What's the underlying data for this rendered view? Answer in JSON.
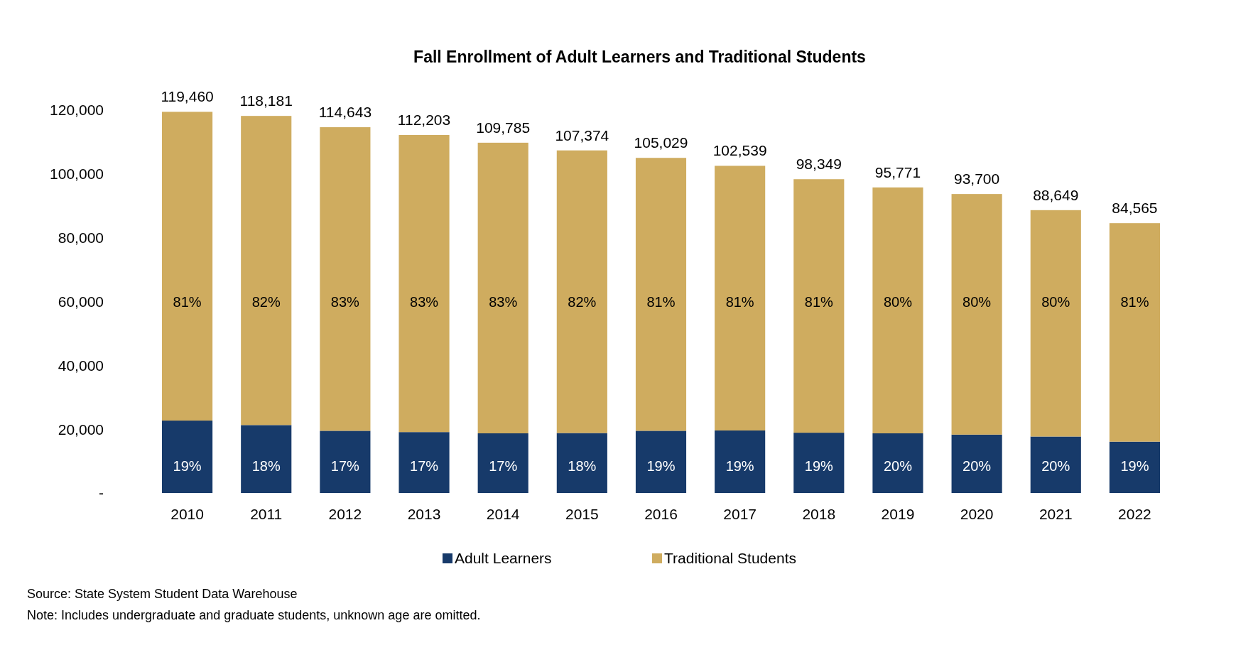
{
  "chart_data": {
    "type": "bar",
    "stacked": true,
    "title": "Fall Enrollment of Adult Learners and Traditional Students",
    "categories": [
      "2010",
      "2011",
      "2012",
      "2013",
      "2014",
      "2015",
      "2016",
      "2017",
      "2018",
      "2019",
      "2020",
      "2021",
      "2022"
    ],
    "series": [
      {
        "name": "Adult Learners",
        "color": "#173a6a",
        "values": [
          22700,
          21300,
          19500,
          19100,
          18700,
          18800,
          19500,
          19600,
          18900,
          18700,
          18300,
          17700,
          16100
        ]
      },
      {
        "name": "Traditional Students",
        "color": "#cfac5f",
        "values": [
          96760,
          96881,
          95143,
          93103,
          91085,
          88574,
          85529,
          82939,
          79449,
          77071,
          75400,
          70949,
          68465
        ]
      }
    ],
    "totals": [
      "119,460",
      "118,181",
      "114,643",
      "112,203",
      "109,785",
      "107,374",
      "105,029",
      "102,539",
      "98,349",
      "95,771",
      "93,700",
      "88,649",
      "84,565"
    ],
    "ylim": [
      0,
      120000
    ],
    "yticks": [
      {
        "value": 0,
        "label": "-"
      },
      {
        "value": 20000,
        "label": "20,000"
      },
      {
        "value": 40000,
        "label": "40,000"
      },
      {
        "value": 60000,
        "label": "60,000"
      },
      {
        "value": 80000,
        "label": "80,000"
      },
      {
        "value": 100000,
        "label": "100,000"
      },
      {
        "value": 120000,
        "label": "120,000"
      }
    ],
    "grid": false,
    "legend": "bottom",
    "annotations": [
      {
        "text": "19%",
        "x": "2010",
        "y": 22700
      },
      {
        "text": "18%",
        "x": "2011",
        "y": 21300
      },
      {
        "text": "17%",
        "x": "2012",
        "y": 19500
      },
      {
        "text": "17%",
        "x": "2013",
        "y": 19100
      },
      {
        "text": "17%",
        "x": "2014",
        "y": 18700
      },
      {
        "text": "18%",
        "x": "2015",
        "y": 18800
      },
      {
        "text": "19%",
        "x": "2016",
        "y": 19500
      },
      {
        "text": "19%",
        "x": "2017",
        "y": 19600
      },
      {
        "text": "19%",
        "x": "2018",
        "y": 18900
      },
      {
        "text": "20%",
        "x": "2019",
        "y": 18700
      },
      {
        "text": "20%",
        "x": "2020",
        "y": 18300
      },
      {
        "text": "20%",
        "x": "2021",
        "y": 17700
      },
      {
        "text": "19%",
        "x": "2022",
        "y": 16100
      },
      "81%",
      "82%",
      "83%",
      "83%",
      "83%",
      "82%",
      "81%",
      "81%",
      "81%",
      "80%",
      "80%",
      "80%",
      "81%",
      "Source: State System Student Data Warehouse",
      "Note: Includes undergraduate and graduate students, unknown age are omitted."
    ]
  }
}
